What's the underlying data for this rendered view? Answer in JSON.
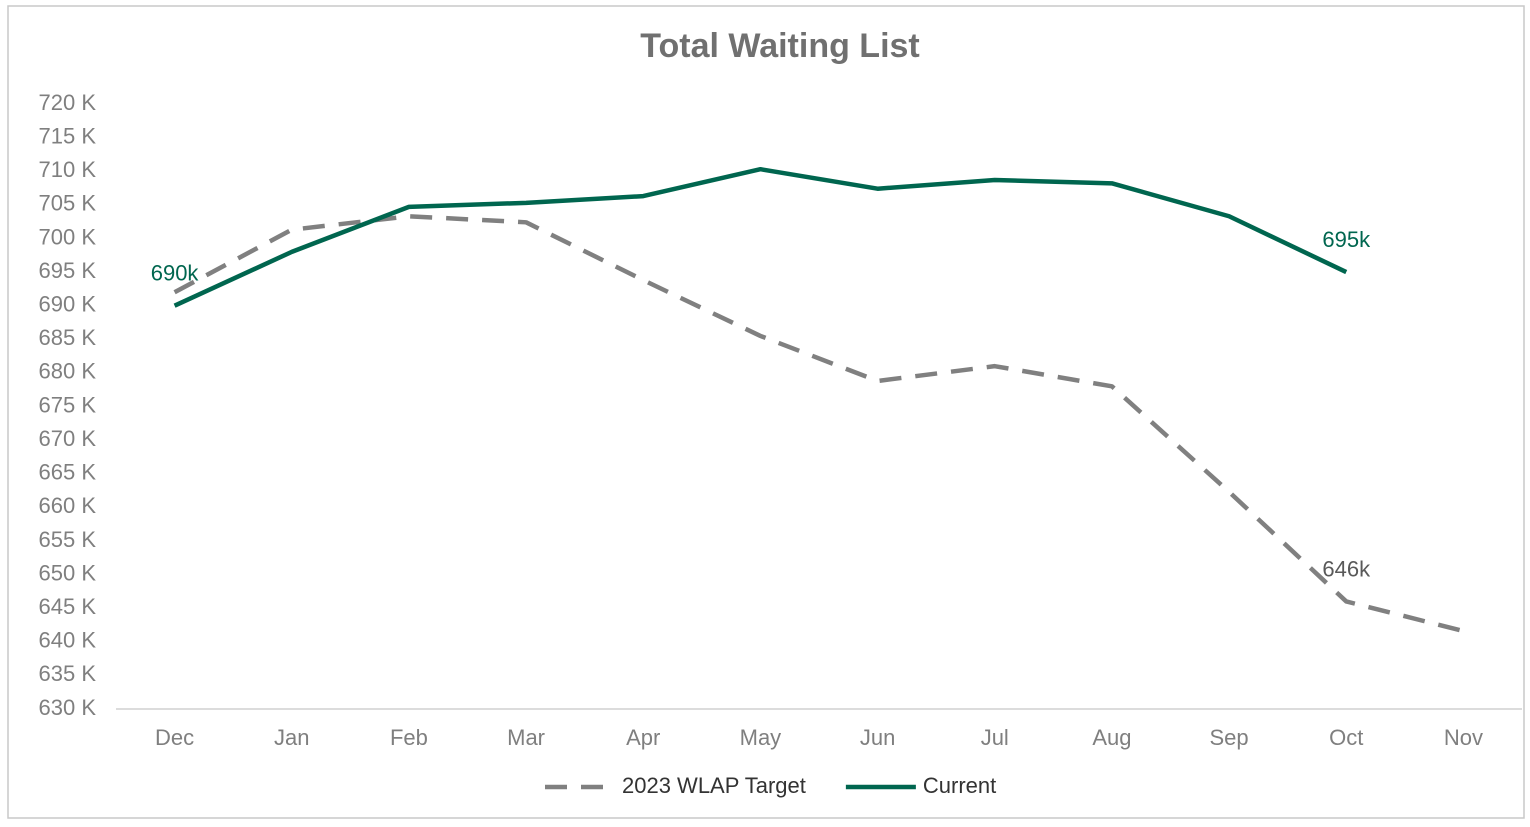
{
  "chart_data": {
    "type": "line",
    "title": "Total Waiting List",
    "categories": [
      "Dec",
      "Jan",
      "Feb",
      "Mar",
      "Apr",
      "May",
      "Jun",
      "Jul",
      "Aug",
      "Sep",
      "Oct",
      "Nov"
    ],
    "series": [
      {
        "name": "2023 WLAP Target",
        "color": "#808080",
        "dashed": true,
        "values": [
          692,
          701.3,
          703.3,
          702.4,
          693.8,
          685.5,
          678.8,
          681,
          678,
          662.3,
          646,
          641.6
        ],
        "value_labels": [
          null,
          null,
          null,
          null,
          null,
          null,
          null,
          null,
          null,
          null,
          "646k",
          null
        ]
      },
      {
        "name": "Current",
        "color": "#00664f",
        "dashed": false,
        "values": [
          690,
          698,
          704.7,
          705.3,
          706.3,
          710.3,
          707.4,
          708.7,
          708.2,
          703.3,
          695,
          null
        ],
        "value_labels": [
          "690k",
          null,
          null,
          null,
          null,
          null,
          null,
          null,
          null,
          null,
          "695k",
          null
        ]
      }
    ],
    "ylim": [
      630,
      720
    ],
    "yticks": [
      {
        "value": 630,
        "label": "630 K"
      },
      {
        "value": 635,
        "label": "635 K"
      },
      {
        "value": 640,
        "label": "640 K"
      },
      {
        "value": 645,
        "label": "645 K"
      },
      {
        "value": 650,
        "label": "650 K"
      },
      {
        "value": 655,
        "label": "655 K"
      },
      {
        "value": 660,
        "label": "660 K"
      },
      {
        "value": 665,
        "label": "665 K"
      },
      {
        "value": 670,
        "label": "670 K"
      },
      {
        "value": 675,
        "label": "675 K"
      },
      {
        "value": 680,
        "label": "680 K"
      },
      {
        "value": 685,
        "label": "685 K"
      },
      {
        "value": 690,
        "label": "690 K"
      },
      {
        "value": 695,
        "label": "695 K"
      },
      {
        "value": 700,
        "label": "700 K"
      },
      {
        "value": 705,
        "label": "705 K"
      },
      {
        "value": 710,
        "label": "710 K"
      },
      {
        "value": 715,
        "label": "715 K"
      },
      {
        "value": 720,
        "label": "720 K"
      }
    ],
    "grid": false
  }
}
